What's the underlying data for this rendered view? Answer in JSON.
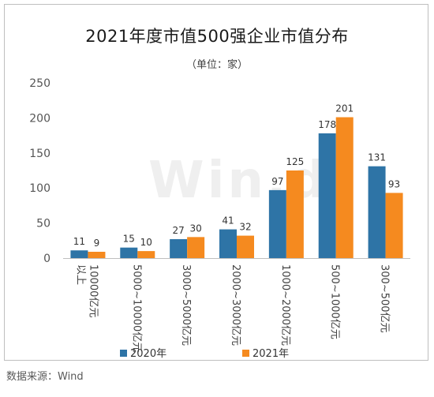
{
  "chart_data": {
    "type": "bar",
    "title": "2021年度市值500强企业市值分布",
    "subtitle": "（单位：家）",
    "categories": [
      "10000亿元以上",
      "5000~10000亿元",
      "3000~5000亿元",
      "2000~3000亿元",
      "1000~2000亿元",
      "500~1000亿元",
      "300~500亿元"
    ],
    "series": [
      {
        "name": "2020年",
        "values": [
          11,
          15,
          27,
          41,
          97,
          178,
          131
        ],
        "color": "#2e74a6"
      },
      {
        "name": "2021年",
        "values": [
          9,
          10,
          30,
          32,
          125,
          201,
          93
        ],
        "color": "#f58a1f"
      }
    ],
    "yticks": [
      0,
      50,
      100,
      150,
      200,
      250
    ],
    "ylim": [
      0,
      250
    ],
    "xlabel": "",
    "ylabel": "",
    "legend_position": "bottom",
    "grid": false,
    "watermark": "Win.d"
  },
  "source": "数据来源：Wind"
}
